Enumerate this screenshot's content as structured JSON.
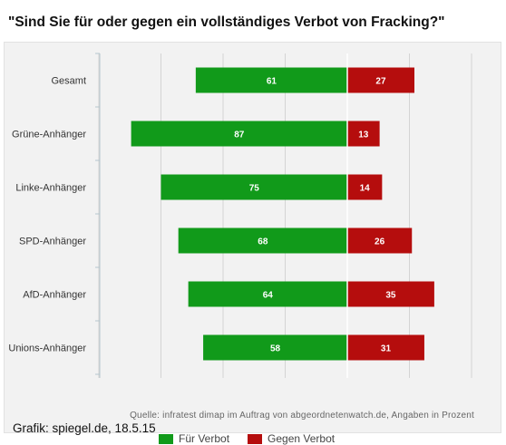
{
  "title": "\"Sind Sie für oder gegen ein vollständiges Verbot von Fracking?\"",
  "legend": {
    "for_label": "Für Verbot",
    "against_label": "Gegen Verbot"
  },
  "source": "Quelle: infratest dimap im Auftrag von abgeordnetenwatch.de, Angaben in Prozent",
  "credit": "Grafik: spiegel.de, 18.5.15",
  "colors": {
    "for": "#119a1a",
    "against": "#b50d0d"
  },
  "chart_data": {
    "type": "bar",
    "orientation": "horizontal-diverging",
    "title": "\"Sind Sie für oder gegen ein vollständiges Verbot von Fracking?\"",
    "categories": [
      "Gesamt",
      "Grüne-Anhänger",
      "Linke-Anhänger",
      "SPD-Anhänger",
      "AfD-Anhänger",
      "Unions-Anhänger"
    ],
    "series": [
      {
        "name": "Für Verbot",
        "values": [
          61,
          87,
          75,
          68,
          64,
          58
        ],
        "color": "#119a1a"
      },
      {
        "name": "Gegen Verbot",
        "values": [
          27,
          13,
          14,
          26,
          35,
          31
        ],
        "color": "#b50d0d"
      }
    ],
    "xlim": [
      -100,
      50
    ],
    "grid": true,
    "legend_position": "bottom"
  }
}
